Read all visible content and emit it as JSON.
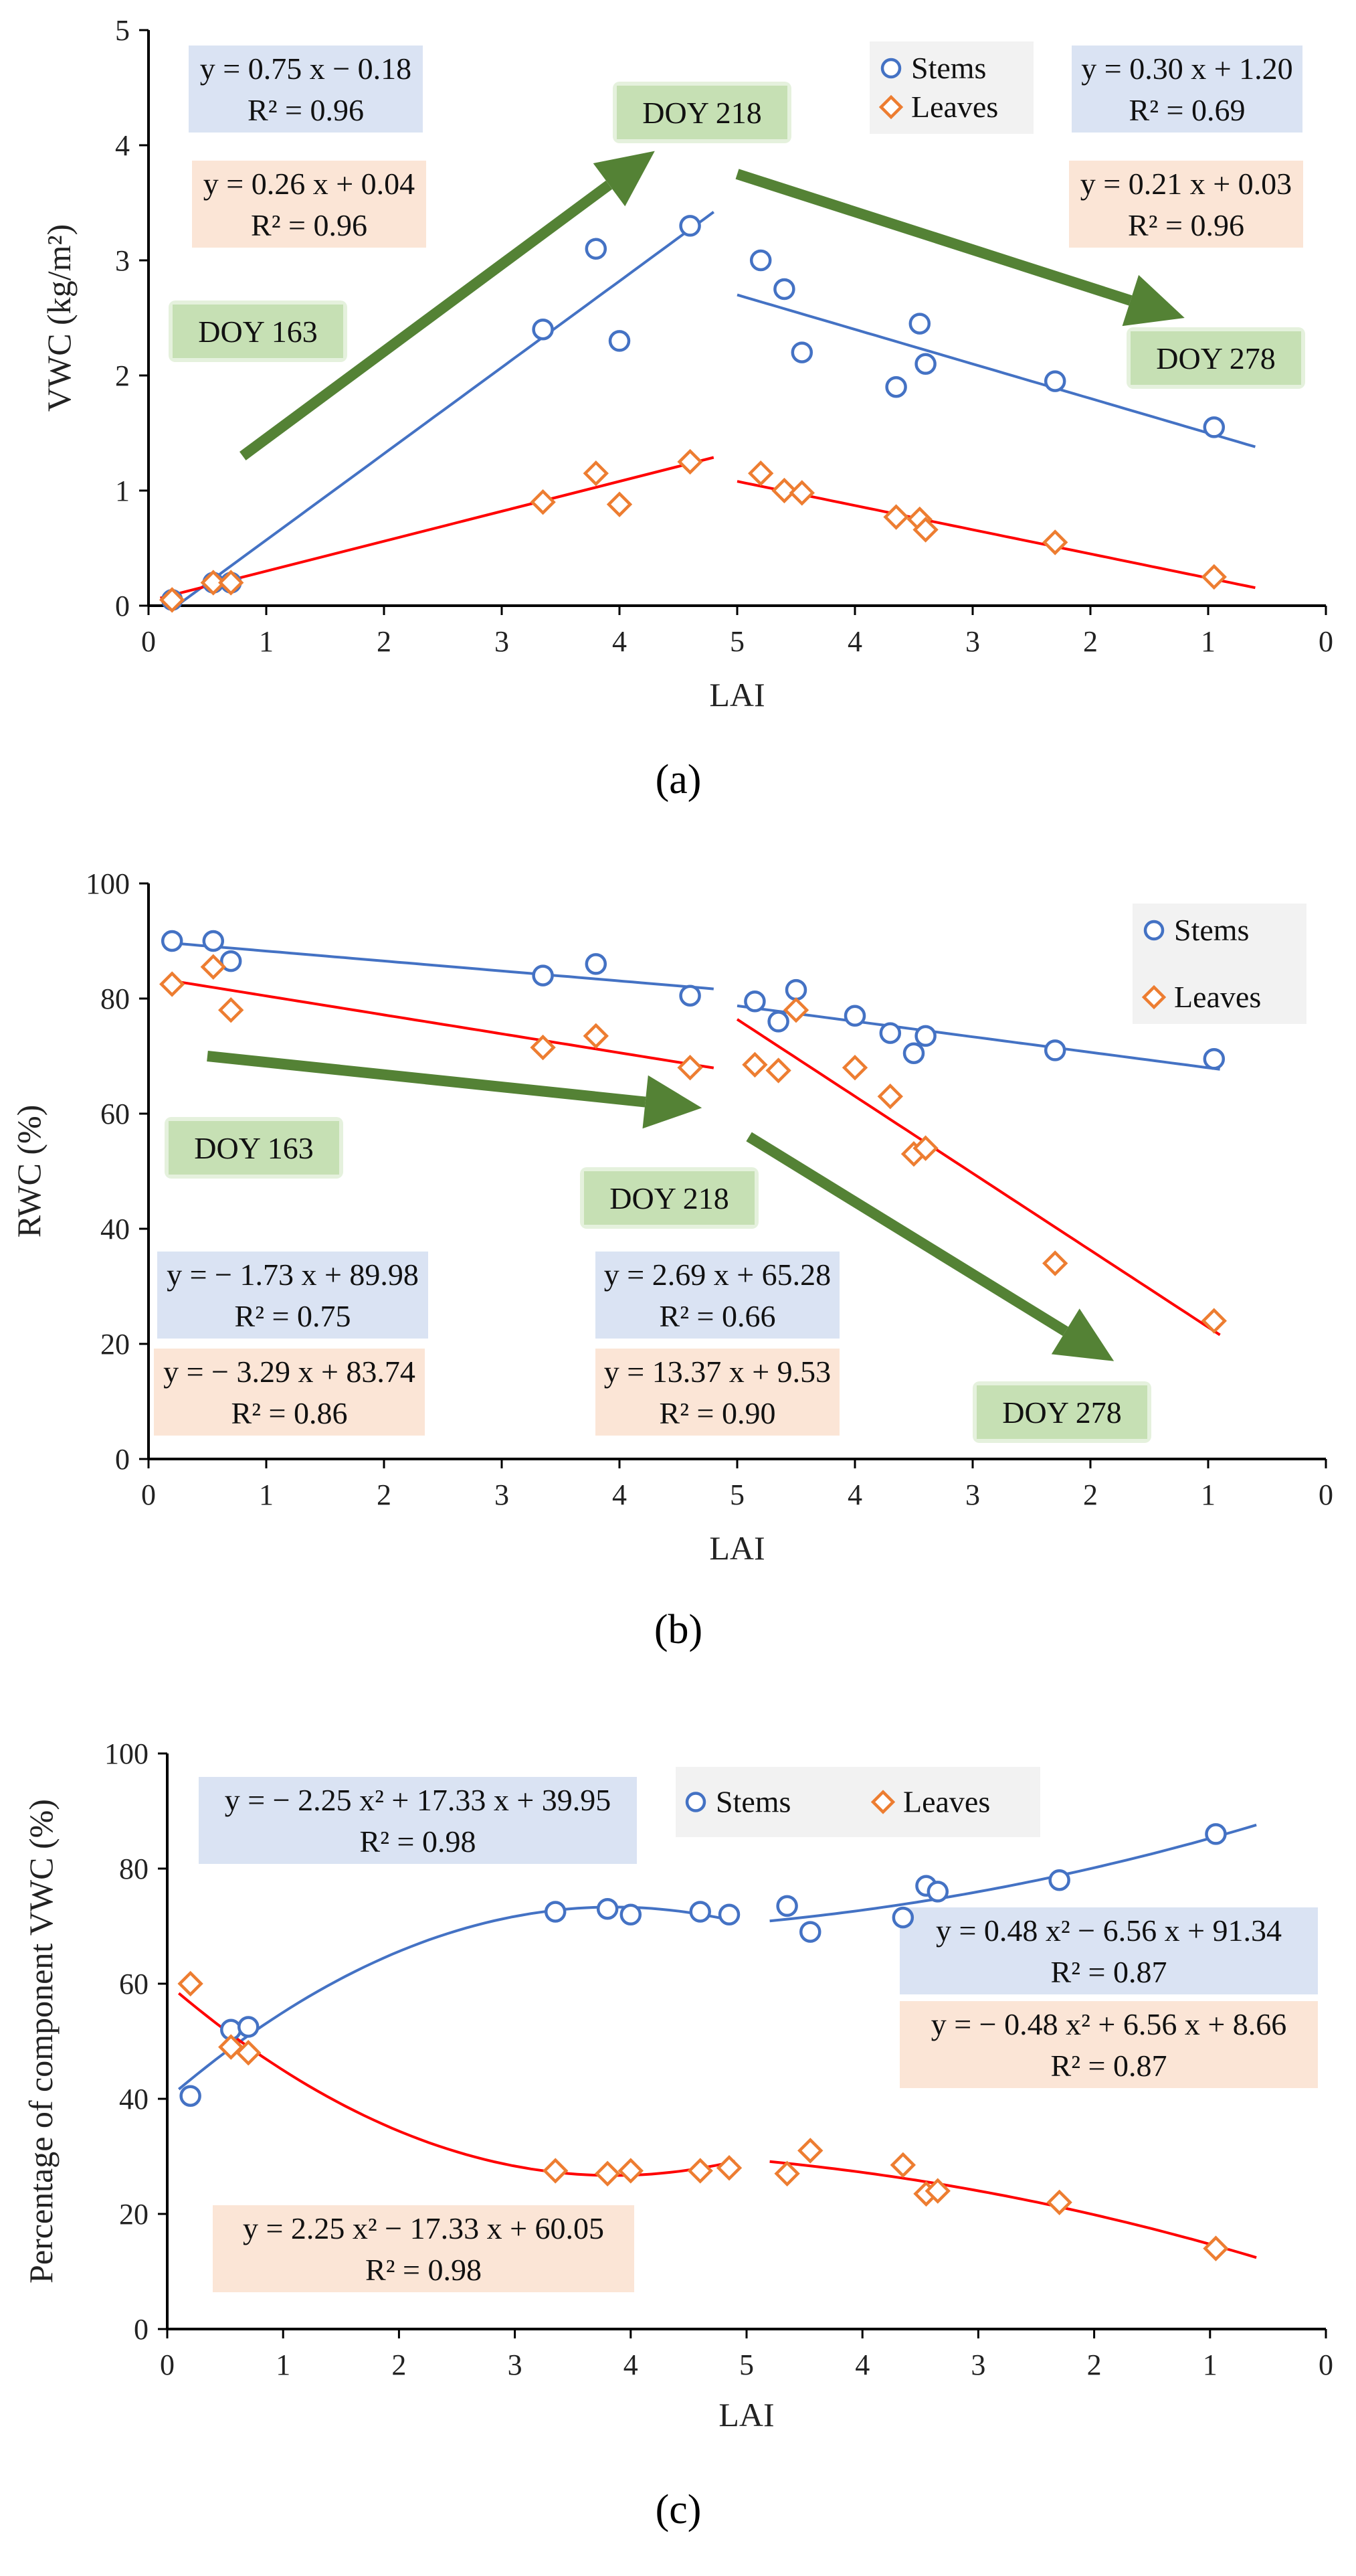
{
  "colors": {
    "stems": "#4472C4",
    "leaves": "#ED7D31",
    "stem_fit": "#4472C4",
    "leaf_fit": "#FF0000",
    "arrow": "#548235",
    "blue_box": "#DAE3F3",
    "orange_box": "#FBE5D6",
    "green_box": "#C6E0B4"
  },
  "x_tick_labels": [
    "0",
    "1",
    "2",
    "3",
    "4",
    "5",
    "4",
    "3",
    "2",
    "1",
    "0"
  ],
  "chart_data": [
    {
      "panel": "(a)",
      "type": "scatter",
      "xlabel": "LAI",
      "ylabel": "VWC (kg/m²)",
      "ylim": [
        0,
        5
      ],
      "yticks": [
        0,
        1,
        2,
        3,
        4,
        5
      ],
      "legend": [
        "Stems",
        "Leaves"
      ],
      "series": [
        {
          "name": "Stems",
          "marker": "circle",
          "points": [
            [
              0.2,
              0.05
            ],
            [
              0.55,
              0.2
            ],
            [
              0.7,
              0.2
            ],
            [
              3.35,
              2.4
            ],
            [
              3.8,
              3.1
            ],
            [
              4.0,
              2.3
            ],
            [
              4.6,
              3.3
            ],
            [
              5.2,
              3.0
            ],
            [
              5.4,
              2.75
            ],
            [
              5.55,
              2.2
            ],
            [
              6.35,
              1.9
            ],
            [
              6.55,
              2.45
            ],
            [
              6.6,
              2.1
            ],
            [
              7.7,
              1.95
            ],
            [
              9.05,
              1.55
            ]
          ]
        },
        {
          "name": "Leaves",
          "marker": "diamond",
          "points": [
            [
              0.2,
              0.05
            ],
            [
              0.55,
              0.2
            ],
            [
              0.7,
              0.2
            ],
            [
              3.35,
              0.9
            ],
            [
              3.8,
              1.15
            ],
            [
              4.0,
              0.88
            ],
            [
              4.6,
              1.25
            ],
            [
              5.2,
              1.15
            ],
            [
              5.4,
              1.0
            ],
            [
              5.55,
              0.98
            ],
            [
              6.35,
              0.77
            ],
            [
              6.55,
              0.75
            ],
            [
              6.6,
              0.66
            ],
            [
              7.7,
              0.55
            ],
            [
              9.05,
              0.25
            ]
          ]
        }
      ],
      "fits": [
        {
          "series": "Stems",
          "type": "linear",
          "x_from": 0.2,
          "x_to": 4.8,
          "slope": 0.75,
          "intercept": -0.18,
          "domain": "rising"
        },
        {
          "series": "Leaves",
          "type": "linear",
          "x_from": 0.1,
          "x_to": 4.8,
          "slope": 0.26,
          "intercept": 0.04,
          "domain": "rising"
        },
        {
          "series": "Stems",
          "type": "linear",
          "x_from": 5.0,
          "x_to": 9.4,
          "slope": 0.3,
          "intercept": 1.2,
          "domain": "falling"
        },
        {
          "series": "Leaves",
          "type": "linear",
          "x_from": 5.0,
          "x_to": 9.4,
          "slope": 0.21,
          "intercept": 0.03,
          "domain": "falling"
        }
      ],
      "arrows": [
        {
          "from": [
            0.8,
            1.3
          ],
          "to": [
            4.3,
            3.95
          ]
        },
        {
          "from": [
            5.0,
            3.75
          ],
          "to": [
            8.8,
            2.5
          ]
        }
      ],
      "annotations": [
        {
          "id": "eq1",
          "color": "blue",
          "line1": "y = 0.75 x − 0.18",
          "line2": "R² = 0.96"
        },
        {
          "id": "eq2",
          "color": "orange",
          "line1": "y = 0.26 x + 0.04",
          "line2": "R² = 0.96"
        },
        {
          "id": "eq3",
          "color": "blue",
          "line1": "y = 0.30 x + 1.20",
          "line2": "R² = 0.69"
        },
        {
          "id": "eq4",
          "color": "orange",
          "line1": "y = 0.21 x + 0.03",
          "line2": "R² = 0.96"
        },
        {
          "id": "doy1",
          "color": "green",
          "line1": "DOY 163"
        },
        {
          "id": "doy2",
          "color": "green",
          "line1": "DOY 218"
        },
        {
          "id": "doy3",
          "color": "green",
          "line1": "DOY 278"
        }
      ]
    },
    {
      "panel": "(b)",
      "type": "scatter",
      "xlabel": "LAI",
      "ylabel": "RWC (%)",
      "ylim": [
        0,
        100
      ],
      "yticks": [
        0,
        20,
        40,
        60,
        80,
        100
      ],
      "legend": [
        "Stems",
        "Leaves"
      ],
      "series": [
        {
          "name": "Stems",
          "marker": "circle",
          "points": [
            [
              0.2,
              90
            ],
            [
              0.55,
              90
            ],
            [
              0.7,
              86.5
            ],
            [
              3.35,
              84
            ],
            [
              3.8,
              86
            ],
            [
              4.6,
              80.5
            ],
            [
              5.15,
              79.5
            ],
            [
              5.35,
              76
            ],
            [
              5.5,
              81.5
            ],
            [
              6.0,
              77
            ],
            [
              6.3,
              74
            ],
            [
              6.5,
              70.5
            ],
            [
              6.6,
              73.5
            ],
            [
              7.7,
              71
            ],
            [
              9.05,
              69.5
            ]
          ]
        },
        {
          "name": "Leaves",
          "marker": "diamond",
          "points": [
            [
              0.2,
              82.5
            ],
            [
              0.55,
              85.5
            ],
            [
              0.7,
              78
            ],
            [
              3.35,
              71.5
            ],
            [
              3.8,
              73.5
            ],
            [
              4.6,
              68
            ],
            [
              5.15,
              68.5
            ],
            [
              5.35,
              67.5
            ],
            [
              5.5,
              78
            ],
            [
              6.0,
              68
            ],
            [
              6.3,
              63
            ],
            [
              6.5,
              53
            ],
            [
              6.6,
              54
            ],
            [
              7.7,
              34
            ],
            [
              9.05,
              24
            ]
          ]
        }
      ],
      "fits": [
        {
          "series": "Stems",
          "type": "linear",
          "x_from": 0.2,
          "x_to": 4.8,
          "slope": -1.73,
          "intercept": 89.98,
          "domain": "rising"
        },
        {
          "series": "Leaves",
          "type": "linear",
          "x_from": 0.2,
          "x_to": 4.8,
          "slope": -3.29,
          "intercept": 83.74,
          "domain": "rising"
        },
        {
          "series": "Stems",
          "type": "linear",
          "x_from": 5.0,
          "x_to": 9.1,
          "slope": 2.69,
          "intercept": 65.28,
          "domain": "falling"
        },
        {
          "series": "Leaves",
          "type": "linear",
          "x_from": 5.0,
          "x_to": 9.1,
          "slope": 13.37,
          "intercept": 9.53,
          "domain": "falling"
        }
      ],
      "arrows": [
        {
          "from": [
            0.5,
            70
          ],
          "to": [
            4.7,
            61
          ]
        },
        {
          "from": [
            5.1,
            56
          ],
          "to": [
            8.2,
            17
          ]
        }
      ],
      "annotations": [
        {
          "id": "eq1",
          "color": "blue",
          "line1": "y = − 1.73 x + 89.98",
          "line2": "R² = 0.75"
        },
        {
          "id": "eq2",
          "color": "orange",
          "line1": "y = − 3.29 x + 83.74",
          "line2": "R² = 0.86"
        },
        {
          "id": "eq3",
          "color": "blue",
          "line1": "y = 2.69 x + 65.28",
          "line2": "R² = 0.66"
        },
        {
          "id": "eq4",
          "color": "orange",
          "line1": "y = 13.37 x + 9.53",
          "line2": "R² = 0.90"
        },
        {
          "id": "doy1",
          "color": "green",
          "line1": "DOY 163"
        },
        {
          "id": "doy2",
          "color": "green",
          "line1": "DOY 218"
        },
        {
          "id": "doy3",
          "color": "green",
          "line1": "DOY 278"
        }
      ]
    },
    {
      "panel": "(c)",
      "type": "scatter",
      "xlabel": "LAI",
      "ylabel": "Percentage of component VWC (%)",
      "ylim": [
        0,
        100
      ],
      "yticks": [
        0,
        20,
        40,
        60,
        80,
        100
      ],
      "legend": [
        "Stems",
        "Leaves"
      ],
      "series": [
        {
          "name": "Stems",
          "marker": "circle",
          "points": [
            [
              0.2,
              40.5
            ],
            [
              0.55,
              52
            ],
            [
              0.7,
              52.5
            ],
            [
              3.35,
              72.5
            ],
            [
              3.8,
              73
            ],
            [
              4.0,
              72
            ],
            [
              4.6,
              72.5
            ],
            [
              4.85,
              72
            ],
            [
              5.35,
              73.5
            ],
            [
              5.55,
              69
            ],
            [
              6.35,
              71.5
            ],
            [
              6.55,
              77
            ],
            [
              6.65,
              76
            ],
            [
              7.7,
              78
            ],
            [
              9.05,
              86
            ]
          ]
        },
        {
          "name": "Leaves",
          "marker": "diamond",
          "points": [
            [
              0.2,
              60
            ],
            [
              0.55,
              49
            ],
            [
              0.7,
              48
            ],
            [
              3.35,
              27.5
            ],
            [
              3.8,
              27
            ],
            [
              4.0,
              27.5
            ],
            [
              4.6,
              27.5
            ],
            [
              4.85,
              28
            ],
            [
              5.35,
              27
            ],
            [
              5.55,
              31
            ],
            [
              6.35,
              28.5
            ],
            [
              6.55,
              23.5
            ],
            [
              6.65,
              24
            ],
            [
              7.7,
              22
            ],
            [
              9.05,
              14
            ]
          ]
        }
      ],
      "fits": [
        {
          "series": "Stems",
          "type": "poly2",
          "x_from": 0.1,
          "x_to": 4.9,
          "a": -2.25,
          "b": 17.33,
          "c": 39.95,
          "domain": "rising"
        },
        {
          "series": "Leaves",
          "type": "poly2",
          "x_from": 0.1,
          "x_to": 4.9,
          "a": 2.25,
          "b": -17.33,
          "c": 60.05,
          "domain": "rising"
        },
        {
          "series": "Stems",
          "type": "poly2",
          "x_from": 5.2,
          "x_to": 9.4,
          "a": 0.48,
          "b": -6.56,
          "c": 91.34,
          "domain": "falling"
        },
        {
          "series": "Leaves",
          "type": "poly2",
          "x_from": 5.2,
          "x_to": 9.4,
          "a": -0.48,
          "b": 6.56,
          "c": 8.66,
          "domain": "falling"
        }
      ],
      "arrows": [],
      "annotations": [
        {
          "id": "eq1",
          "color": "blue",
          "line1": "y = − 2.25 x² + 17.33 x + 39.95",
          "line2": "R² = 0.98"
        },
        {
          "id": "eq2",
          "color": "orange",
          "line1": "y = 2.25 x² − 17.33 x + 60.05",
          "line2": "R² = 0.98"
        },
        {
          "id": "eq3",
          "color": "blue",
          "line1": "y = 0.48 x² − 6.56 x + 91.34",
          "line2": "R² = 0.87"
        },
        {
          "id": "eq4",
          "color": "orange",
          "line1": "y = − 0.48 x² + 6.56 x + 8.66",
          "line2": "R² = 0.87"
        }
      ]
    }
  ]
}
